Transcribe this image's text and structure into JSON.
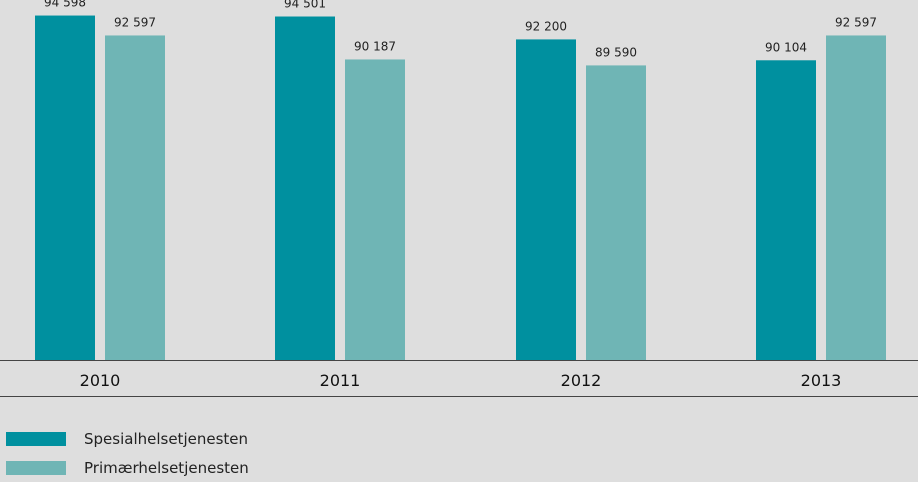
{
  "chart_data": {
    "type": "bar",
    "categories": [
      "2010",
      "2011",
      "2012",
      "2013"
    ],
    "series": [
      {
        "name": "Spesialhelsetjenesten",
        "color": "#00909f",
        "values": [
          94598,
          94501,
          92200,
          90104
        ],
        "labels": [
          "94 598",
          "94 501",
          "92 200",
          "90 104"
        ]
      },
      {
        "name": "Primærhelsetjenesten",
        "color": "#6fb5b5",
        "values": [
          92597,
          90187,
          89590,
          92597
        ],
        "labels": [
          "92 597",
          "90 187",
          "89 590",
          "92 597"
        ]
      }
    ],
    "title": "",
    "xlabel": "",
    "ylabel": "",
    "legend_position": "bottom-left",
    "grid": false
  }
}
